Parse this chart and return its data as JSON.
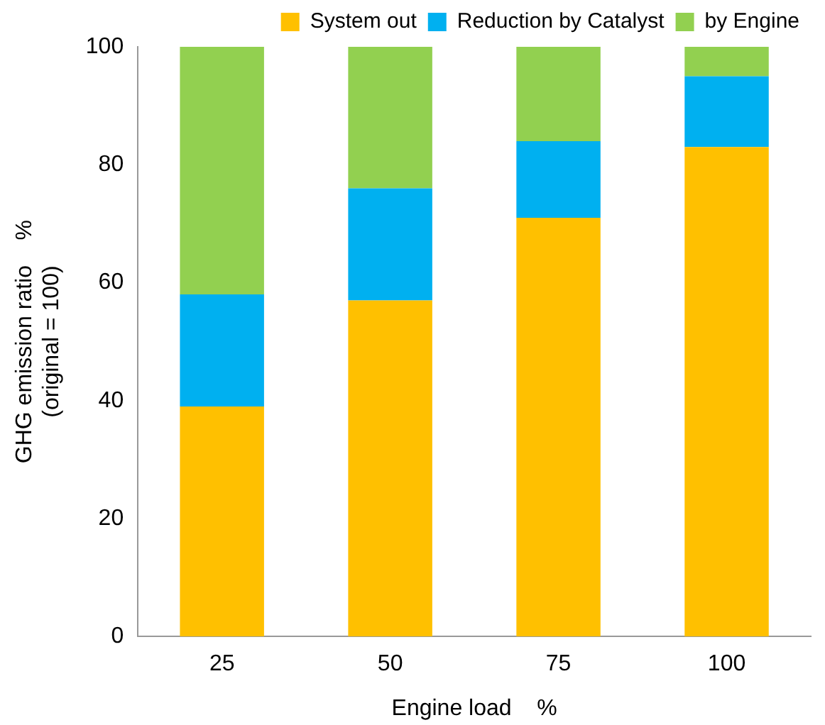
{
  "chart_data": {
    "type": "bar",
    "stacked": true,
    "categories": [
      "25",
      "50",
      "75",
      "100"
    ],
    "series": [
      {
        "name": "System out",
        "color": "#ffc000",
        "values": [
          39,
          57,
          71,
          83
        ]
      },
      {
        "name": "Reduction by Catalyst",
        "color": "#00b0f0",
        "values": [
          19,
          19,
          13,
          12
        ]
      },
      {
        "name": "by Engine",
        "color": "#92d050",
        "values": [
          42,
          24,
          16,
          5
        ]
      }
    ],
    "xlabel": "Engine load    %",
    "ylabel": "GHG emission ratio    %\n(original = 100)",
    "ylim": [
      0,
      100
    ],
    "yticks": [
      0,
      20,
      40,
      60,
      80,
      100
    ],
    "grid": false,
    "legend": "top"
  }
}
